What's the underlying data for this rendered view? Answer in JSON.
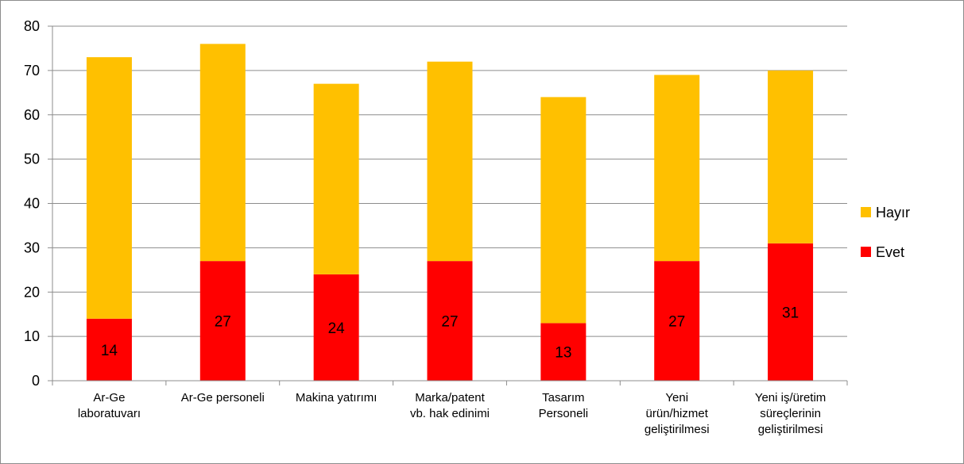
{
  "chart_data": {
    "type": "bar",
    "stacked": true,
    "categories": [
      [
        "Ar-Ge",
        "laboratuvarı"
      ],
      [
        "Ar-Ge personeli"
      ],
      [
        "Makina yatırımı"
      ],
      [
        "Marka/patent",
        "vb. hak edinimi"
      ],
      [
        "Tasarım",
        "Personeli"
      ],
      [
        "Yeni",
        "ürün/hizmet",
        "geliştirilmesi"
      ],
      [
        "Yeni iş/üretim",
        "süreçlerinin",
        "geliştirilmesi"
      ]
    ],
    "series": [
      {
        "name": "Evet",
        "color": "#ff0000",
        "values": [
          14,
          27,
          24,
          27,
          13,
          27,
          31
        ],
        "show_labels": true
      },
      {
        "name": "Hayır",
        "color": "#ffc000",
        "values": [
          59,
          49,
          43,
          45,
          51,
          42,
          39
        ],
        "show_labels": false
      }
    ],
    "ylim": [
      0,
      80
    ],
    "yticks": [
      "0",
      "10",
      "20",
      "30",
      "40",
      "50",
      "60",
      "70",
      "80"
    ],
    "grid": true,
    "legend_position": "right",
    "legend_order": [
      "Hayır",
      "Evet"
    ],
    "title": "",
    "xlabel": "",
    "ylabel": ""
  }
}
